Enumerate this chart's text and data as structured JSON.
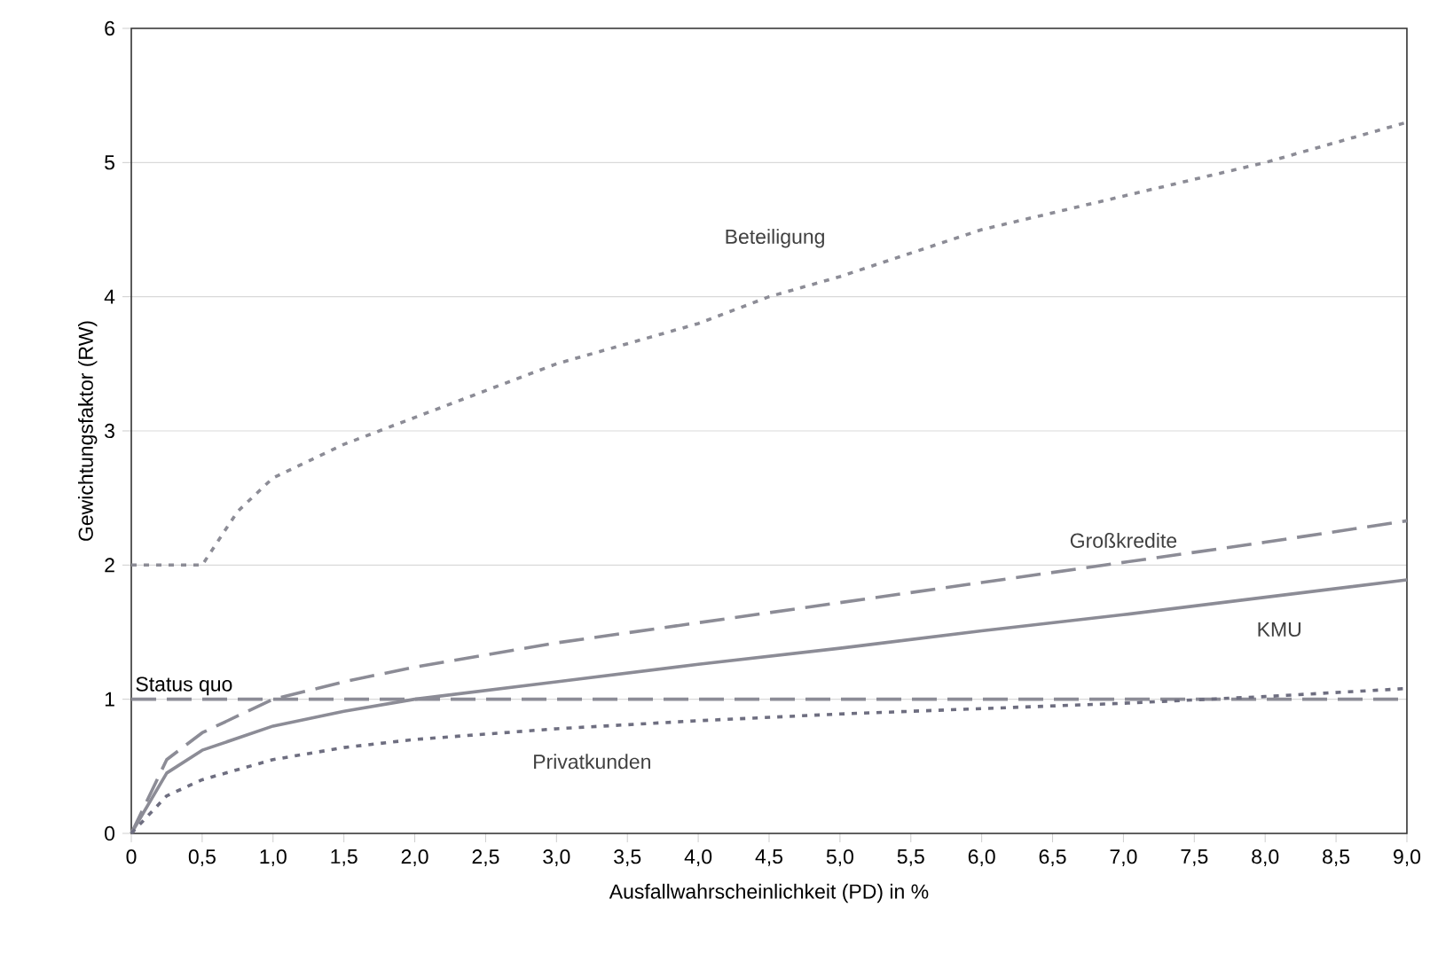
{
  "chart_data": {
    "type": "line",
    "xlabel": "Ausfallwahrscheinlichkeit (PD) in %",
    "ylabel": "Gewichtungsfaktor (RW)",
    "xlim": [
      0,
      9.0
    ],
    "ylim": [
      0,
      6
    ],
    "xticks": [
      0,
      {
        "value": 0.5,
        "label": "0,5"
      },
      {
        "value": 1.0,
        "label": "1,0"
      },
      {
        "value": 1.5,
        "label": "1,5"
      },
      {
        "value": 2.0,
        "label": "2,0"
      },
      {
        "value": 2.5,
        "label": "2,5"
      },
      {
        "value": 3.0,
        "label": "3,0"
      },
      {
        "value": 3.5,
        "label": "3,5"
      },
      {
        "value": 4.0,
        "label": "4,0"
      },
      {
        "value": 4.5,
        "label": "4,5"
      },
      {
        "value": 5.0,
        "label": "5,0"
      },
      {
        "value": 5.5,
        "label": "5,5"
      },
      {
        "value": 6.0,
        "label": "6,0"
      },
      {
        "value": 6.5,
        "label": "6,5"
      },
      {
        "value": 7.0,
        "label": "7,0"
      },
      {
        "value": 7.5,
        "label": "7,5"
      },
      {
        "value": 8.0,
        "label": "8,0"
      },
      {
        "value": 8.5,
        "label": "8,5"
      },
      {
        "value": 9.0,
        "label": "9,0"
      }
    ],
    "yticks": [
      0,
      1,
      2,
      3,
      4,
      5,
      6
    ],
    "grid": "y",
    "series": [
      {
        "name": "Beteiligung",
        "color": "#8c8c96",
        "line_style": "dotted",
        "x": [
          0,
          0.5,
          0.75,
          1.0,
          1.5,
          2.0,
          3.0,
          4.0,
          4.5,
          5.0,
          6.0,
          7.0,
          8.0,
          9.0
        ],
        "values": [
          2,
          2,
          2.4,
          2.65,
          2.9,
          3.1,
          3.5,
          3.8,
          4.0,
          4.15,
          4.5,
          4.75,
          5.0,
          5.3
        ]
      },
      {
        "name": "Großkredite",
        "color": "#8c8c96",
        "line_style": "dashed",
        "x": [
          0,
          0.25,
          0.5,
          1.0,
          1.5,
          2.0,
          3.0,
          4.0,
          5.0,
          6.0,
          7.0,
          8.0,
          9.0
        ],
        "values": [
          0,
          0.55,
          0.75,
          1.0,
          1.13,
          1.24,
          1.42,
          1.57,
          1.72,
          1.87,
          2.02,
          2.17,
          2.33
        ]
      },
      {
        "name": "KMU",
        "color": "#8c8c96",
        "line_style": "solid",
        "x": [
          0,
          0.25,
          0.5,
          1.0,
          1.5,
          2.0,
          3.0,
          4.0,
          5.0,
          6.0,
          7.0,
          8.0,
          9.0
        ],
        "values": [
          0,
          0.45,
          0.62,
          0.8,
          0.91,
          1.0,
          1.13,
          1.26,
          1.38,
          1.51,
          1.63,
          1.76,
          1.89
        ]
      },
      {
        "name": "Privatkunden",
        "color": "#6e6e80",
        "line_style": "dotted",
        "x": [
          0,
          0.25,
          0.5,
          1.0,
          1.5,
          2.0,
          3.0,
          4.0,
          5.0,
          6.0,
          7.0,
          8.0,
          9.0
        ],
        "values": [
          0,
          0.28,
          0.4,
          0.55,
          0.64,
          0.7,
          0.78,
          0.84,
          0.89,
          0.93,
          0.97,
          1.02,
          1.08
        ]
      }
    ],
    "ref_lines": [
      {
        "axis": "y",
        "value": 1,
        "label": "Status quo",
        "color": "#8c8c96",
        "line_style": "dashed"
      }
    ]
  }
}
